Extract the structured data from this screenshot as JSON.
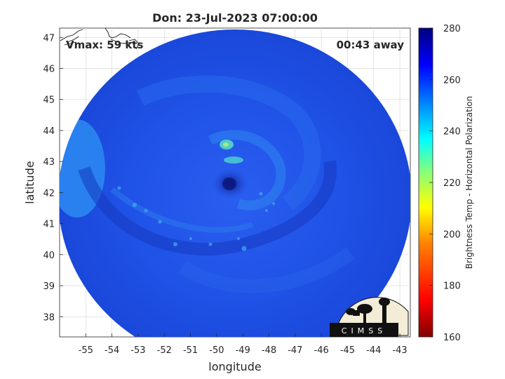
{
  "title": "Don: 23-Jul-2023 07:00:00",
  "vmax_label": "Vmax: 59 kts",
  "time_offset": "00:43 away",
  "x_axis": {
    "label": "longitude",
    "ticks": [
      "-55",
      "-54",
      "-53",
      "-52",
      "-51",
      "-50",
      "-49",
      "-48",
      "-47",
      "-46",
      "-45",
      "-44",
      "-43"
    ],
    "range": [
      -56.0,
      -42.6
    ]
  },
  "y_axis": {
    "label": "latitude",
    "ticks": [
      "47",
      "46",
      "45",
      "44",
      "43",
      "42",
      "41",
      "40",
      "39",
      "38"
    ],
    "range": [
      37.35,
      47.3
    ]
  },
  "colorbar": {
    "label": "Brightness Temp - Horizontal Polarization",
    "ticks": [
      "280",
      "260",
      "240",
      "220",
      "200",
      "180",
      "160"
    ],
    "range": [
      160,
      280
    ],
    "colormap": [
      "#800000",
      "#ff0000",
      "#ff8000",
      "#ffff00",
      "#80ff80",
      "#00ffff",
      "#0080ff",
      "#0000ff",
      "#000080"
    ]
  },
  "logo_text": "CIMSS",
  "colors": {
    "disk_fill": "#1f52e8",
    "eye": "#0a1a8c",
    "warm_band": "#2a7cf0",
    "cold_spot": "#5fe6b8"
  },
  "storm_center": {
    "lon": -49.3,
    "lat": 42.4
  }
}
